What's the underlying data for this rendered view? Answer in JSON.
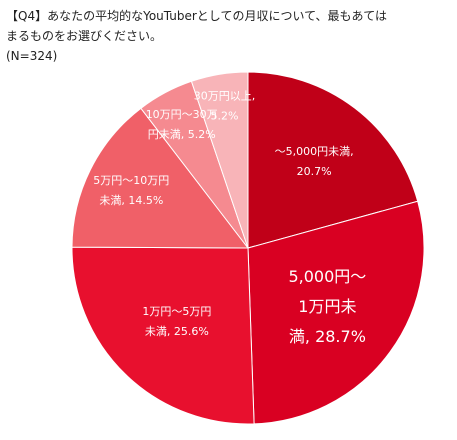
{
  "title_lines": [
    "【Q4】あなたの平均的なYouTuberとしての月収について、最もあては",
    "まるものをお選びください。",
    "(N=324)"
  ],
  "chart_data": {
    "type": "pie",
    "start": "12 o'clock",
    "direction": "clockwise",
    "slices": [
      {
        "label_lines": [
          "～5,000円未満,",
          "20.7%"
        ],
        "category": "～5,000円未満",
        "value": 20.7,
        "color": "#c00018"
      },
      {
        "label_lines": [
          "5,000円～",
          "1万円未",
          "満, 28.7%"
        ],
        "category": "5,000円～1万円未満",
        "value": 28.7,
        "color": "#d90022"
      },
      {
        "label_lines": [
          "1万円～5万円",
          "未満, 25.6%"
        ],
        "category": "1万円～5万円未満",
        "value": 25.6,
        "color": "#e8102e"
      },
      {
        "label_lines": [
          "5万円～10万円",
          "未満, 14.5%"
        ],
        "category": "5万円～10万円未満",
        "value": 14.5,
        "color": "#f06068"
      },
      {
        "label_lines": [
          "10万円～30万",
          "円未満, 5.2%"
        ],
        "category": "10万円～30万円未満",
        "value": 5.2,
        "color": "#f58a90"
      },
      {
        "label_lines": [
          "30万円以上,",
          "5.2%"
        ],
        "category": "30万円以上",
        "value": 5.2,
        "color": "#f8b4b8"
      }
    ]
  }
}
